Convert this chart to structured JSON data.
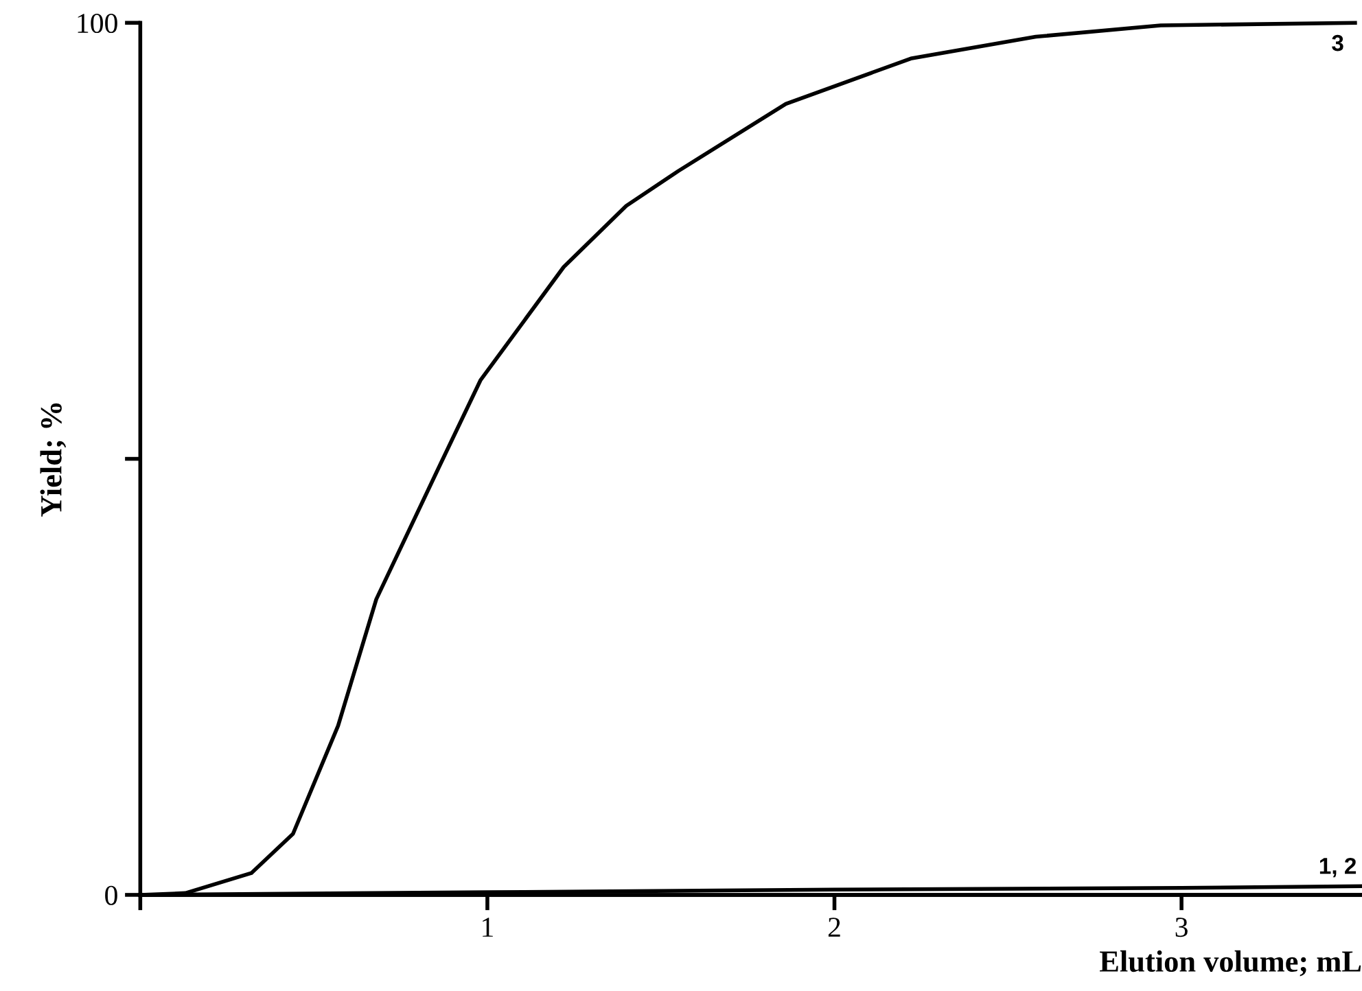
{
  "chart_data": {
    "type": "line",
    "xlabel": "Elution volume; mL",
    "ylabel": "Yield; %",
    "xlim": [
      0,
      3.52
    ],
    "ylim": [
      0,
      100
    ],
    "xticks": [
      {
        "value": 0,
        "label": null
      },
      1,
      2,
      3
    ],
    "yticks": [
      0,
      {
        "value": 50,
        "label": null
      },
      100
    ],
    "series": [
      {
        "color": "#000000",
        "x": [
          0,
          0.13,
          0.32,
          0.44,
          0.57,
          0.68,
          0.86,
          0.98,
          1.22,
          1.4,
          1.55,
          1.86,
          2.22,
          2.58,
          2.94,
          3.5
        ],
        "values": [
          0,
          0.2,
          2.5,
          7,
          19.4,
          33.9,
          49,
          59,
          72,
          79,
          83,
          90.7,
          95.9,
          98.4,
          99.7,
          100
        ]
      },
      {
        "color": "#000000",
        "x": [
          0,
          1,
          2,
          3,
          3.52
        ],
        "values": [
          0,
          0.3,
          0.6,
          0.8,
          1
        ]
      },
      {
        "color": "#000000",
        "x": [
          0,
          3.52
        ],
        "values": [
          0,
          0
        ]
      }
    ],
    "annotations": [
      {
        "text": "3",
        "x": 3.45,
        "y": 100
      },
      {
        "text": "1, 2",
        "x": 3.45,
        "y": 1
      }
    ],
    "grid": false,
    "legend": false,
    "marker": "none",
    "line_style": "solid"
  }
}
